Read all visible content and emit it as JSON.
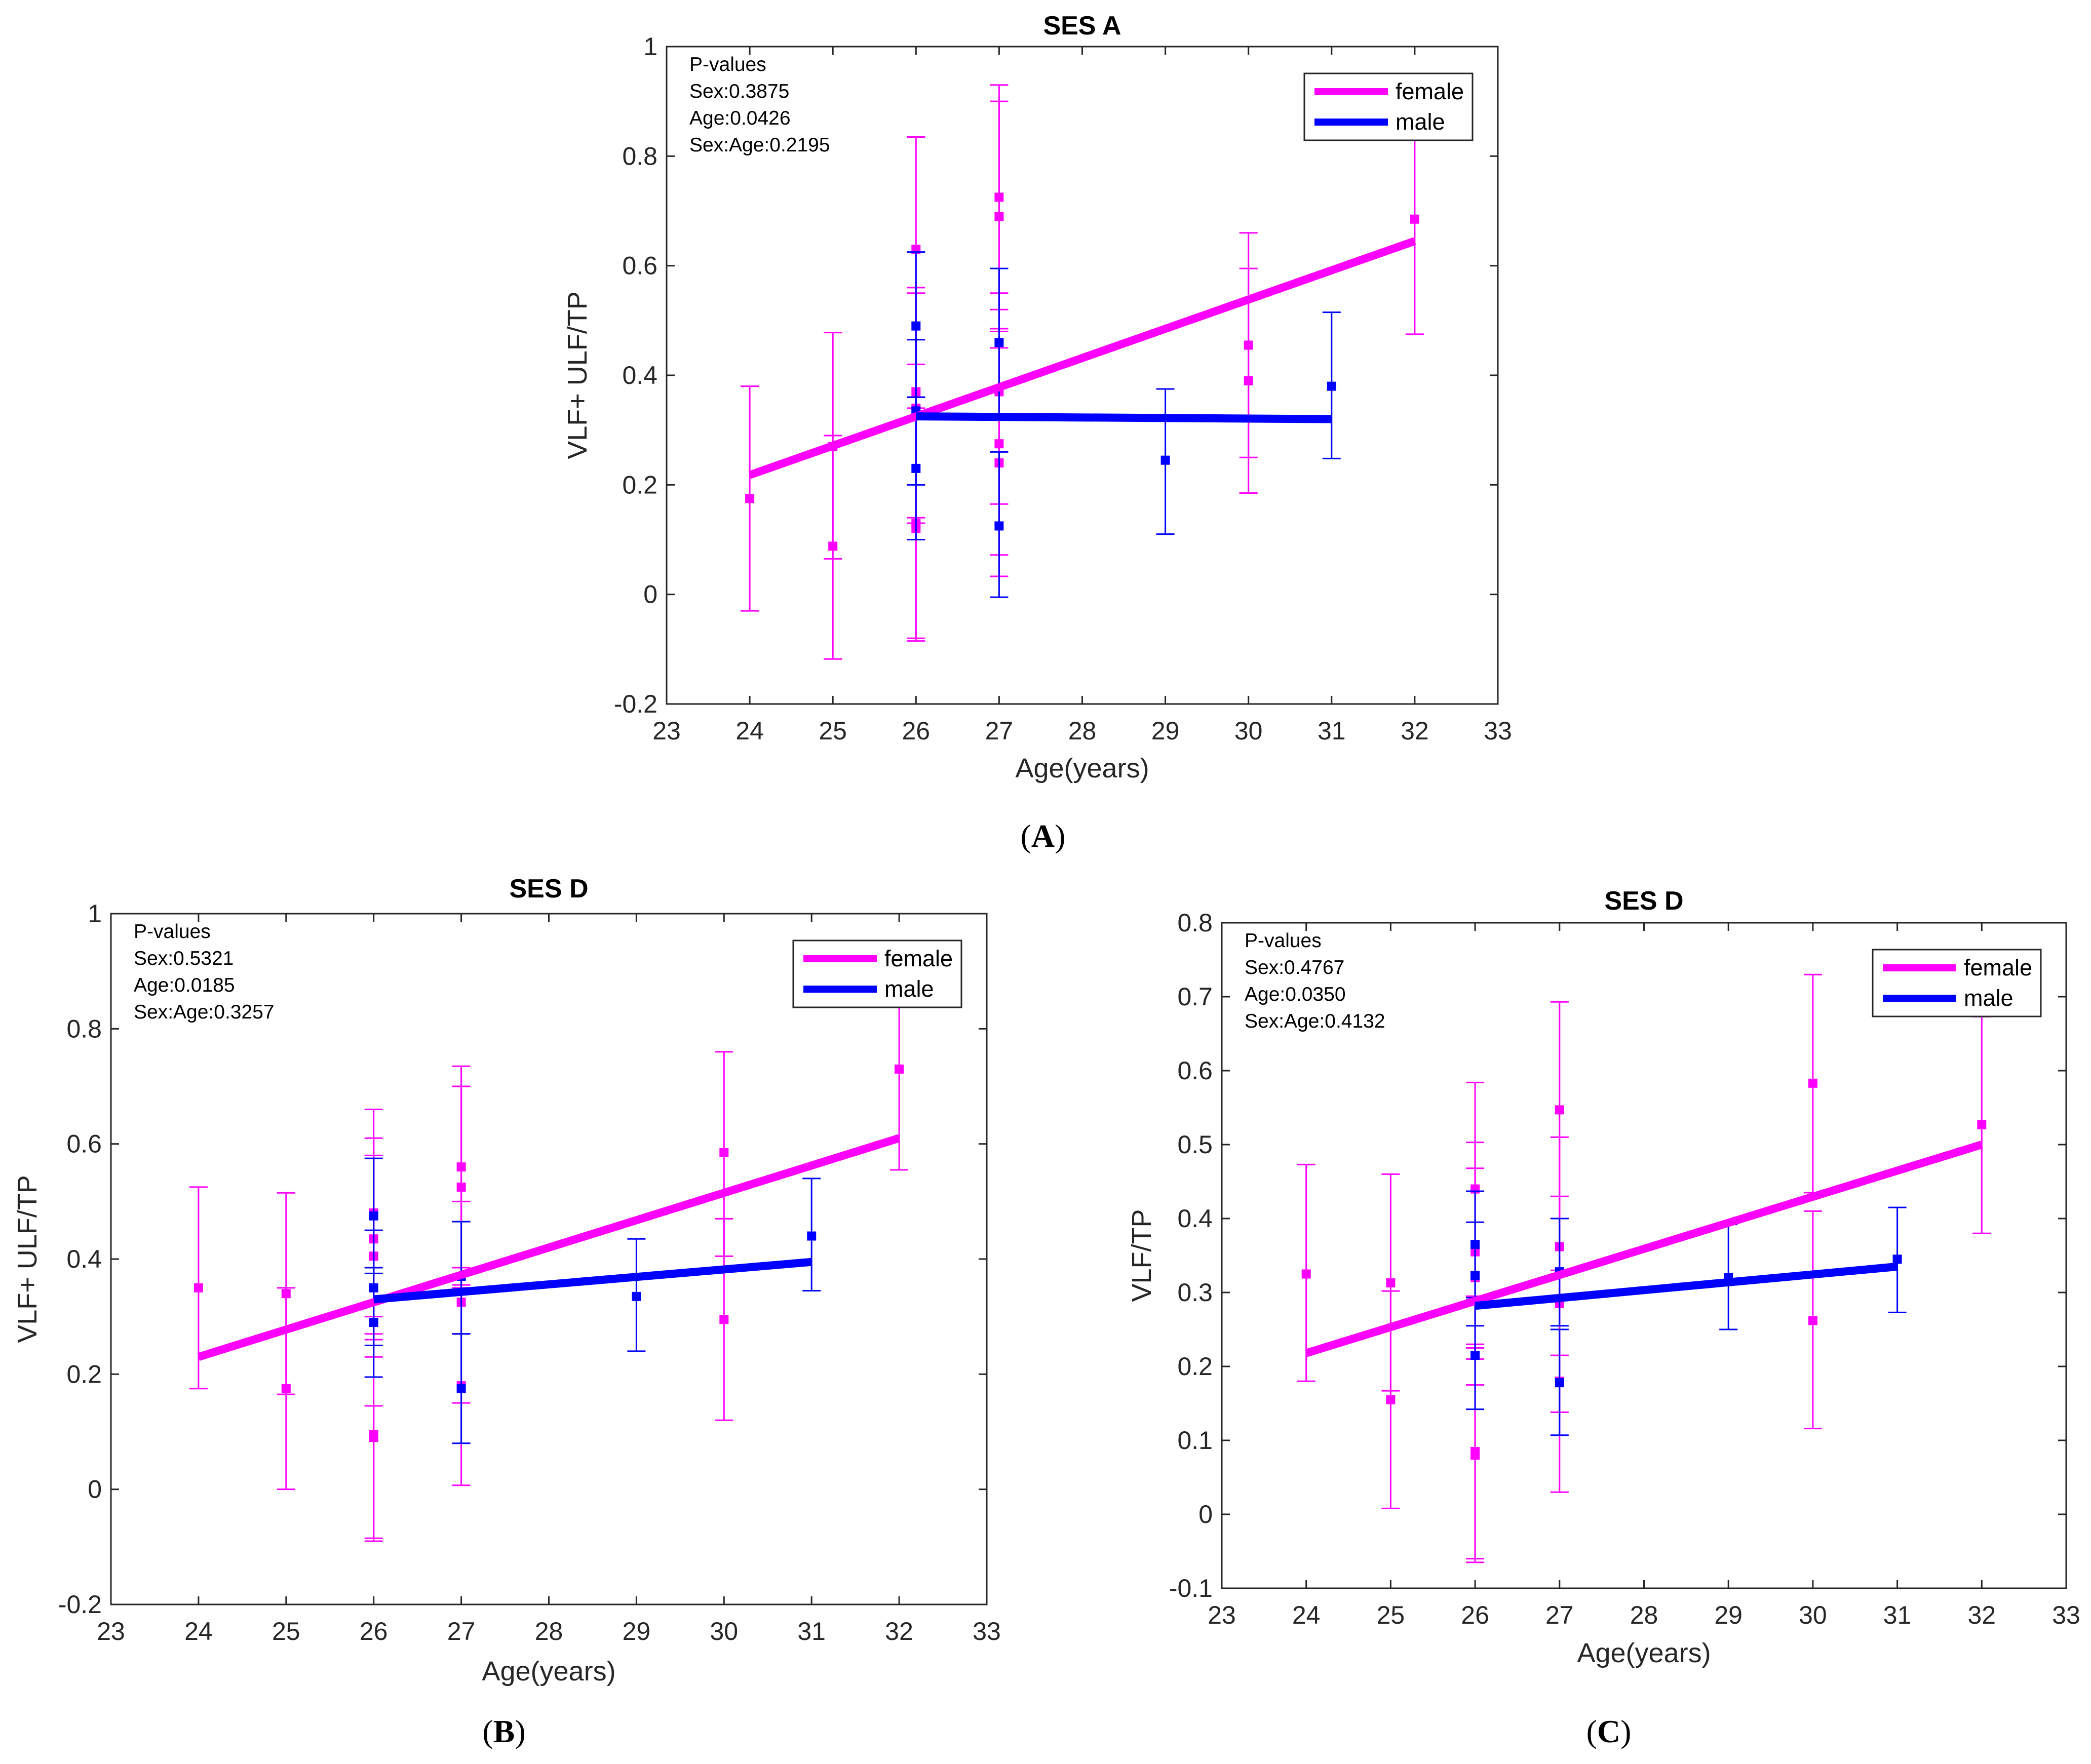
{
  "colors": {
    "female": "#ff00ff",
    "male": "#0000ff",
    "axis": "#262626"
  },
  "chart_data": [
    {
      "type": "scatter",
      "panel_label": "A",
      "title": "SES A",
      "xlabel": "Age(years)",
      "ylabel": "VLF+ ULF/TP",
      "xlim": [
        23,
        33
      ],
      "ylim": [
        -0.2,
        1
      ],
      "xticks": [
        "23",
        "24",
        "25",
        "26",
        "27",
        "28",
        "29",
        "30",
        "31",
        "32",
        "33"
      ],
      "yticks": [
        "-0.2",
        "0",
        "0.2",
        "0.4",
        "0.6",
        "0.8",
        "1"
      ],
      "annotation": [
        "P-values",
        "Sex:0.3875",
        "Age:0.0426",
        "Sex:Age:0.2195"
      ],
      "legend": {
        "position": "top-right",
        "entries": [
          "female",
          "male"
        ]
      },
      "series": [
        {
          "name": "female",
          "points": [
            {
              "x": 24,
              "y": 0.175,
              "lo": -0.03,
              "hi": 0.38
            },
            {
              "x": 25,
              "y": 0.088,
              "lo": -0.118,
              "hi": 0.29
            },
            {
              "x": 25,
              "y": 0.27,
              "lo": 0.065,
              "hi": 0.478
            },
            {
              "x": 26,
              "y": 0.63,
              "lo": 0.42,
              "hi": 0.835
            },
            {
              "x": 26,
              "y": 0.37,
              "lo": 0.14,
              "hi": 0.56
            },
            {
              "x": 26,
              "y": 0.34,
              "lo": 0.13,
              "hi": 0.55
            },
            {
              "x": 26,
              "y": 0.13,
              "lo": -0.08,
              "hi": 0.36
            },
            {
              "x": 26,
              "y": 0.12,
              "lo": -0.085,
              "hi": 0.34
            },
            {
              "x": 27,
              "y": 0.725,
              "lo": 0.52,
              "hi": 0.93
            },
            {
              "x": 27,
              "y": 0.69,
              "lo": 0.48,
              "hi": 0.9
            },
            {
              "x": 27,
              "y": 0.37,
              "lo": 0.165,
              "hi": 0.55
            },
            {
              "x": 27,
              "y": 0.275,
              "lo": 0.072,
              "hi": 0.485
            },
            {
              "x": 27,
              "y": 0.24,
              "lo": 0.033,
              "hi": 0.45
            },
            {
              "x": 30,
              "y": 0.455,
              "lo": 0.25,
              "hi": 0.66
            },
            {
              "x": 30,
              "y": 0.39,
              "lo": 0.185,
              "hi": 0.595
            },
            {
              "x": 32,
              "y": 0.685,
              "lo": 0.475,
              "hi": 0.9
            }
          ],
          "fit": [
            [
              24,
              0.218
            ],
            [
              32,
              0.645
            ]
          ]
        },
        {
          "name": "male",
          "points": [
            {
              "x": 26,
              "y": 0.49,
              "lo": 0.36,
              "hi": 0.625
            },
            {
              "x": 26,
              "y": 0.335,
              "lo": 0.2,
              "hi": 0.465
            },
            {
              "x": 26,
              "y": 0.23,
              "lo": 0.1,
              "hi": 0.36
            },
            {
              "x": 27,
              "y": 0.46,
              "lo": 0.33,
              "hi": 0.595
            },
            {
              "x": 27,
              "y": 0.125,
              "lo": -0.005,
              "hi": 0.26
            },
            {
              "x": 29,
              "y": 0.245,
              "lo": 0.11,
              "hi": 0.375
            },
            {
              "x": 31,
              "y": 0.38,
              "lo": 0.248,
              "hi": 0.515
            }
          ],
          "fit": [
            [
              26,
              0.325
            ],
            [
              31,
              0.32
            ]
          ]
        }
      ]
    },
    {
      "type": "scatter",
      "panel_label": "B",
      "title": "SES D",
      "xlabel": "Age(years)",
      "ylabel": "VLF+ ULF/TP",
      "xlim": [
        23,
        33
      ],
      "ylim": [
        -0.2,
        1
      ],
      "xticks": [
        "23",
        "24",
        "25",
        "26",
        "27",
        "28",
        "29",
        "30",
        "31",
        "32",
        "33"
      ],
      "yticks": [
        "-0.2",
        "0",
        "0.2",
        "0.4",
        "0.6",
        "0.8",
        "1"
      ],
      "annotation": [
        "P-values",
        "Sex:0.5321",
        "Age:0.0185",
        "Sex:Age:0.3257"
      ],
      "legend": {
        "position": "top-right",
        "entries": [
          "female",
          "male"
        ]
      },
      "series": [
        {
          "name": "female",
          "points": [
            {
              "x": 24,
              "y": 0.35,
              "lo": 0.175,
              "hi": 0.525
            },
            {
              "x": 25,
              "y": 0.34,
              "lo": 0.165,
              "hi": 0.515
            },
            {
              "x": 25,
              "y": 0.175,
              "lo": 0.0,
              "hi": 0.35
            },
            {
              "x": 26,
              "y": 0.435,
              "lo": 0.26,
              "hi": 0.61
            },
            {
              "x": 26,
              "y": 0.405,
              "lo": 0.23,
              "hi": 0.58
            },
            {
              "x": 26,
              "y": 0.48,
              "lo": 0.3,
              "hi": 0.66
            },
            {
              "x": 26,
              "y": 0.095,
              "lo": -0.085,
              "hi": 0.27
            },
            {
              "x": 26,
              "y": 0.09,
              "lo": -0.09,
              "hi": 0.145
            },
            {
              "x": 27,
              "y": 0.56,
              "lo": 0.385,
              "hi": 0.735
            },
            {
              "x": 27,
              "y": 0.525,
              "lo": 0.35,
              "hi": 0.7
            },
            {
              "x": 27,
              "y": 0.325,
              "lo": 0.15,
              "hi": 0.5
            },
            {
              "x": 27,
              "y": 0.18,
              "lo": 0.007,
              "hi": 0.355
            },
            {
              "x": 30,
              "y": 0.585,
              "lo": 0.405,
              "hi": 0.76
            },
            {
              "x": 30,
              "y": 0.295,
              "lo": 0.12,
              "hi": 0.47
            },
            {
              "x": 32,
              "y": 0.73,
              "lo": 0.555,
              "hi": 0.905
            }
          ],
          "fit": [
            [
              24,
              0.23
            ],
            [
              32,
              0.61
            ]
          ]
        },
        {
          "name": "male",
          "points": [
            {
              "x": 26,
              "y": 0.475,
              "lo": 0.375,
              "hi": 0.575
            },
            {
              "x": 26,
              "y": 0.35,
              "lo": 0.25,
              "hi": 0.45
            },
            {
              "x": 26,
              "y": 0.29,
              "lo": 0.195,
              "hi": 0.385
            },
            {
              "x": 27,
              "y": 0.37,
              "lo": 0.27,
              "hi": 0.465
            },
            {
              "x": 27,
              "y": 0.175,
              "lo": 0.08,
              "hi": 0.27
            },
            {
              "x": 29,
              "y": 0.335,
              "lo": 0.24,
              "hi": 0.435
            },
            {
              "x": 31,
              "y": 0.44,
              "lo": 0.345,
              "hi": 0.54
            }
          ],
          "fit": [
            [
              26,
              0.33
            ],
            [
              31,
              0.395
            ]
          ]
        }
      ]
    },
    {
      "type": "scatter",
      "panel_label": "C",
      "title": "SES D",
      "xlabel": "Age(years)",
      "ylabel": "VLF/TP",
      "xlim": [
        23,
        33
      ],
      "ylim": [
        -0.1,
        0.8
      ],
      "xticks": [
        "23",
        "24",
        "25",
        "26",
        "27",
        "28",
        "29",
        "30",
        "31",
        "32",
        "33"
      ],
      "yticks": [
        "-0.1",
        "0",
        "0.1",
        "0.2",
        "0.3",
        "0.4",
        "0.5",
        "0.6",
        "0.7",
        "0.8"
      ],
      "annotation": [
        "P-values",
        "Sex:0.4767",
        "Age:0.0350",
        "Sex:Age:0.4132"
      ],
      "legend": {
        "position": "top-right",
        "entries": [
          "female",
          "male"
        ]
      },
      "series": [
        {
          "name": "female",
          "points": [
            {
              "x": 24,
              "y": 0.325,
              "lo": 0.18,
              "hi": 0.473
            },
            {
              "x": 25,
              "y": 0.313,
              "lo": 0.167,
              "hi": 0.46
            },
            {
              "x": 25,
              "y": 0.155,
              "lo": 0.008,
              "hi": 0.302
            },
            {
              "x": 26,
              "y": 0.44,
              "lo": 0.295,
              "hi": 0.584
            },
            {
              "x": 26,
              "y": 0.355,
              "lo": 0.21,
              "hi": 0.503
            },
            {
              "x": 26,
              "y": 0.32,
              "lo": 0.175,
              "hi": 0.468
            },
            {
              "x": 26,
              "y": 0.085,
              "lo": -0.06,
              "hi": 0.23
            },
            {
              "x": 26,
              "y": 0.08,
              "lo": -0.065,
              "hi": 0.225
            },
            {
              "x": 27,
              "y": 0.547,
              "lo": 0.4,
              "hi": 0.693
            },
            {
              "x": 27,
              "y": 0.362,
              "lo": 0.215,
              "hi": 0.51
            },
            {
              "x": 27,
              "y": 0.285,
              "lo": 0.138,
              "hi": 0.43
            },
            {
              "x": 27,
              "y": 0.18,
              "lo": 0.03,
              "hi": 0.33
            },
            {
              "x": 30,
              "y": 0.583,
              "lo": 0.435,
              "hi": 0.73
            },
            {
              "x": 30,
              "y": 0.262,
              "lo": 0.116,
              "hi": 0.41
            },
            {
              "x": 32,
              "y": 0.527,
              "lo": 0.38,
              "hi": 0.673
            }
          ],
          "fit": [
            [
              24,
              0.218
            ],
            [
              32,
              0.5
            ]
          ]
        },
        {
          "name": "male",
          "points": [
            {
              "x": 26,
              "y": 0.365,
              "lo": 0.293,
              "hi": 0.437
            },
            {
              "x": 26,
              "y": 0.323,
              "lo": 0.255,
              "hi": 0.395
            },
            {
              "x": 26,
              "y": 0.215,
              "lo": 0.142,
              "hi": 0.29
            },
            {
              "x": 27,
              "y": 0.328,
              "lo": 0.255,
              "hi": 0.4
            },
            {
              "x": 27,
              "y": 0.178,
              "lo": 0.107,
              "hi": 0.25
            },
            {
              "x": 29,
              "y": 0.32,
              "lo": 0.25,
              "hi": 0.392
            },
            {
              "x": 31,
              "y": 0.345,
              "lo": 0.273,
              "hi": 0.415
            }
          ],
          "fit": [
            [
              26,
              0.282
            ],
            [
              31,
              0.335
            ]
          ]
        }
      ]
    }
  ]
}
